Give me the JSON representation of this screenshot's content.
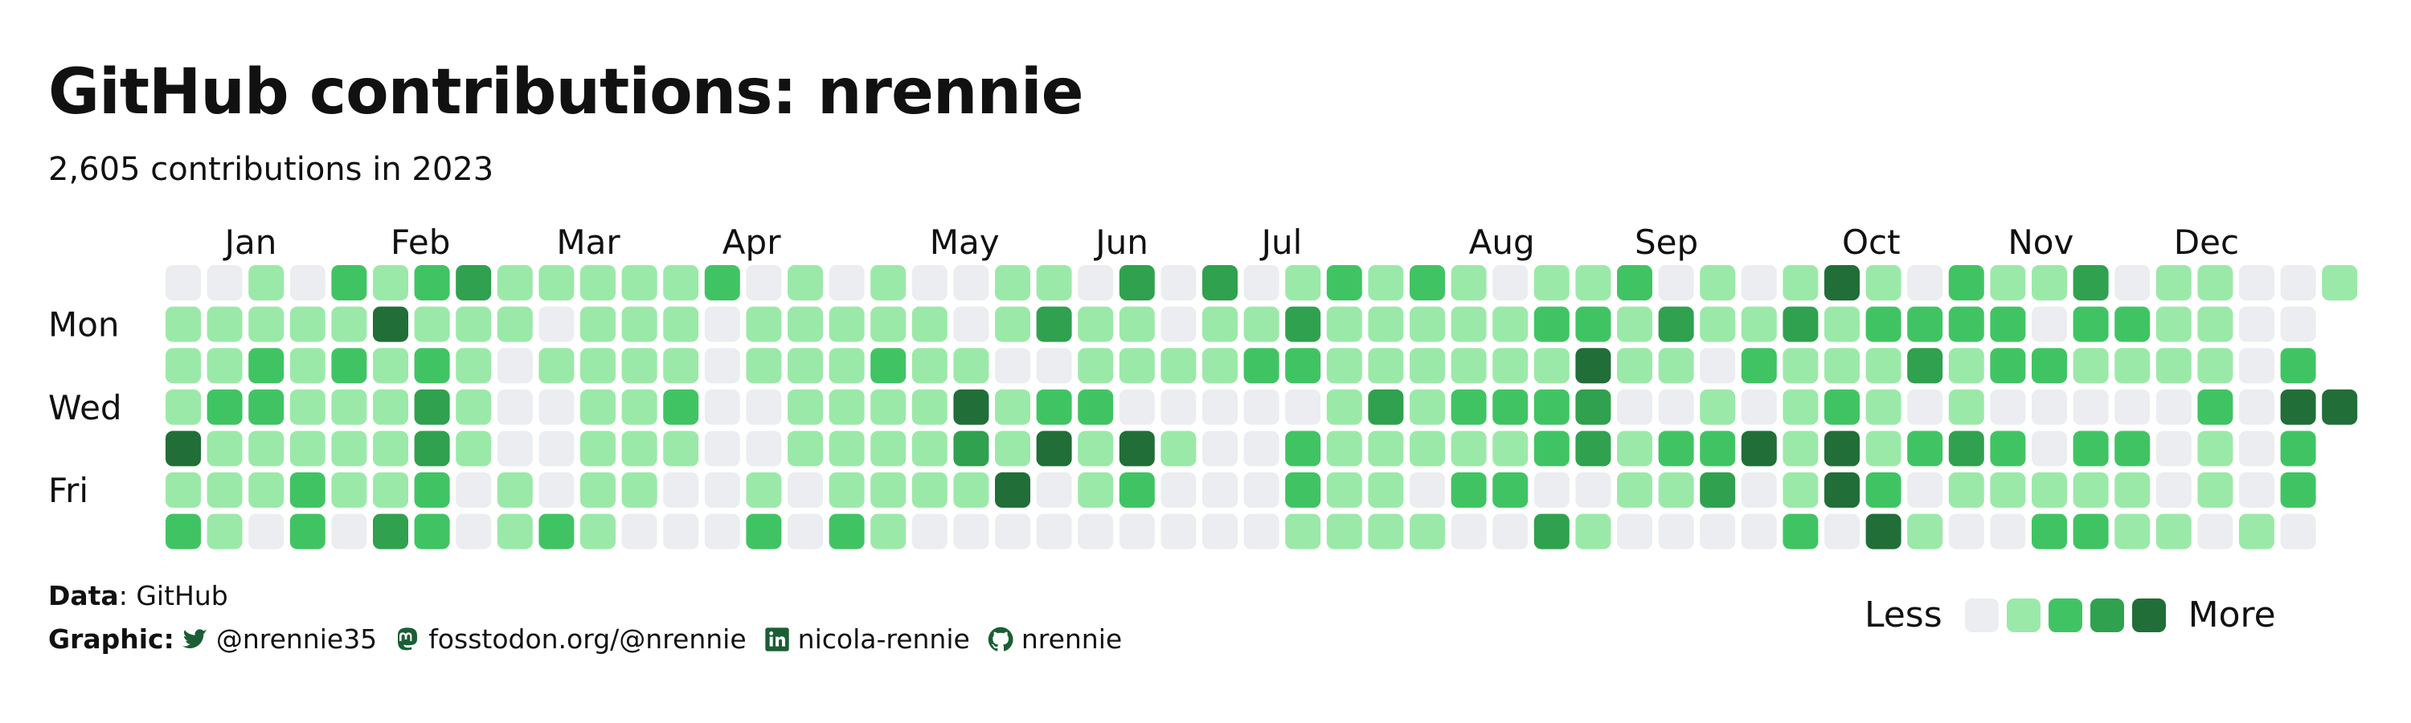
{
  "title": "GitHub contributions: nrennie",
  "subtitle": "2,605 contributions in 2023",
  "caption": {
    "data_label": "Data",
    "data_value": ": GitHub",
    "graphic_label": "Graphic",
    "graphic_sep": ":",
    "handles": [
      {
        "icon": "twitter-icon",
        "text": "@nrennie35"
      },
      {
        "icon": "mastodon-icon",
        "text": "fosstodon.org/@nrennie"
      },
      {
        "icon": "linkedin-icon",
        "text": "nicola-rennie"
      },
      {
        "icon": "github-icon",
        "text": "nrennie"
      }
    ]
  },
  "legend": {
    "less": "Less",
    "more": "More",
    "levels": [
      "#ebedf0",
      "#9be9a8",
      "#40c463",
      "#30a14e",
      "#216e39"
    ]
  },
  "chart_data": {
    "type": "heatmap",
    "title": "GitHub contributions: nrennie",
    "subtitle": "2,605 contributions in 2023",
    "year": 2023,
    "first_column_start": "2022-12-31",
    "value_type": "contribution level (0 = none, 4 = most)",
    "weekday_labels": [
      {
        "row": 1,
        "label": "Mon"
      },
      {
        "row": 3,
        "label": "Wed"
      },
      {
        "row": 5,
        "label": "Fri"
      }
    ],
    "month_labels": [
      {
        "label": "Jan",
        "week": 1
      },
      {
        "label": "Feb",
        "week": 5
      },
      {
        "label": "Mar",
        "week": 9
      },
      {
        "label": "Apr",
        "week": 13
      },
      {
        "label": "May",
        "week": 18
      },
      {
        "label": "Jun",
        "week": 22
      },
      {
        "label": "Jul",
        "week": 26
      },
      {
        "label": "Aug",
        "week": 31
      },
      {
        "label": "Sep",
        "week": 35
      },
      {
        "label": "Oct",
        "week": 40
      },
      {
        "label": "Nov",
        "week": 44
      },
      {
        "label": "Dec",
        "week": 48
      }
    ],
    "rows": [
      [
        0,
        0,
        1,
        0,
        2,
        1,
        2,
        3,
        1,
        1,
        1,
        1,
        1,
        2,
        0,
        1,
        0,
        1,
        0,
        0,
        1,
        1,
        0,
        3,
        0,
        3,
        0,
        1,
        2,
        1,
        2,
        1,
        0,
        1,
        1,
        2,
        0,
        1,
        0,
        1,
        4,
        1,
        0,
        2,
        1,
        1,
        3,
        0,
        1,
        1,
        0,
        0,
        1
      ],
      [
        1,
        1,
        1,
        1,
        1,
        4,
        1,
        1,
        1,
        0,
        1,
        1,
        1,
        0,
        1,
        1,
        1,
        1,
        1,
        0,
        1,
        3,
        1,
        1,
        0,
        1,
        1,
        3,
        1,
        1,
        1,
        1,
        1,
        2,
        2,
        1,
        3,
        1,
        1,
        3,
        1,
        2,
        2,
        2,
        2,
        0,
        2,
        2,
        1,
        1,
        0,
        0
      ],
      [
        1,
        1,
        2,
        1,
        2,
        1,
        2,
        1,
        0,
        1,
        1,
        1,
        1,
        0,
        1,
        1,
        1,
        2,
        1,
        1,
        0,
        0,
        1,
        1,
        1,
        1,
        2,
        2,
        1,
        1,
        1,
        1,
        1,
        1,
        4,
        1,
        1,
        0,
        2,
        1,
        1,
        1,
        3,
        1,
        2,
        2,
        1,
        1,
        1,
        1,
        0,
        2
      ],
      [
        1,
        2,
        2,
        1,
        1,
        1,
        3,
        1,
        0,
        0,
        1,
        1,
        2,
        0,
        0,
        1,
        1,
        1,
        1,
        4,
        1,
        2,
        2,
        0,
        0,
        0,
        0,
        0,
        1,
        3,
        1,
        2,
        2,
        2,
        3,
        0,
        0,
        1,
        0,
        1,
        2,
        1,
        0,
        1,
        0,
        0,
        0,
        0,
        0,
        2,
        0,
        4,
        4
      ],
      [
        4,
        1,
        1,
        1,
        1,
        1,
        3,
        1,
        0,
        0,
        1,
        1,
        1,
        0,
        0,
        1,
        1,
        1,
        1,
        3,
        1,
        4,
        1,
        4,
        1,
        0,
        0,
        2,
        1,
        1,
        1,
        1,
        1,
        2,
        3,
        1,
        2,
        2,
        4,
        1,
        4,
        1,
        2,
        3,
        2,
        0,
        2,
        2,
        0,
        1,
        0,
        2
      ],
      [
        1,
        1,
        1,
        2,
        1,
        1,
        2,
        0,
        1,
        0,
        1,
        1,
        0,
        0,
        1,
        0,
        1,
        1,
        1,
        1,
        4,
        0,
        1,
        2,
        0,
        0,
        0,
        2,
        1,
        1,
        0,
        2,
        2,
        0,
        0,
        1,
        1,
        3,
        0,
        1,
        4,
        2,
        0,
        1,
        1,
        1,
        1,
        1,
        0,
        1,
        0,
        2
      ],
      [
        2,
        1,
        0,
        2,
        0,
        3,
        2,
        0,
        1,
        2,
        1,
        0,
        0,
        0,
        2,
        0,
        2,
        1,
        0,
        0,
        0,
        0,
        0,
        0,
        0,
        0,
        0,
        1,
        1,
        1,
        1,
        0,
        0,
        3,
        1,
        0,
        0,
        0,
        0,
        2,
        0,
        4,
        1,
        0,
        0,
        2,
        2,
        1,
        1,
        0,
        1,
        0
      ]
    ]
  }
}
